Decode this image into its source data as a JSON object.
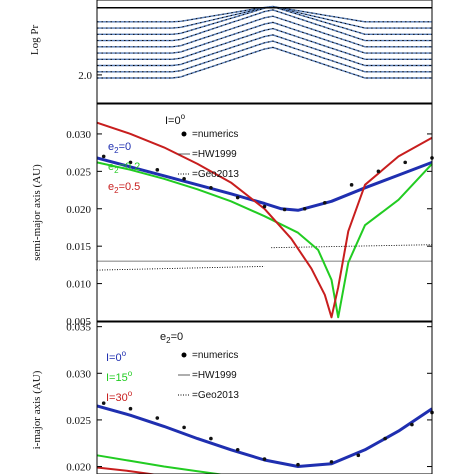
{
  "colors": {
    "numerics": "#111111",
    "e2_0": "#1f2fb0",
    "e2_02": "#22cc22",
    "e2_05": "#c81e1e",
    "I_0": "#1f2fb0",
    "I_15": "#22cc22",
    "I_30": "#c81e1e",
    "top_curves": "#5a7fb8"
  },
  "chart_data": [
    {
      "type": "line",
      "panel": "top",
      "ylabel": "Log Pr",
      "yticks": [
        "2.0"
      ],
      "ylim": [
        1.82,
        2.48
      ],
      "xlim": [
        0,
        1
      ],
      "peak_x": 0.52,
      "series": [
        {
          "left": 2.34,
          "right": 2.34,
          "peak": 2.44
        },
        {
          "left": 2.3,
          "right": 2.3,
          "peak": 2.44
        },
        {
          "left": 2.26,
          "right": 2.26,
          "peak": 2.44
        },
        {
          "left": 2.22,
          "right": 2.22,
          "peak": 2.42
        },
        {
          "left": 2.18,
          "right": 2.18,
          "peak": 2.38
        },
        {
          "left": 2.14,
          "right": 2.14,
          "peak": 2.34
        },
        {
          "left": 2.1,
          "right": 2.1,
          "peak": 2.3
        },
        {
          "left": 2.06,
          "right": 2.06,
          "peak": 2.26
        },
        {
          "left": 2.02,
          "right": 2.02,
          "peak": 2.22
        },
        {
          "left": 1.98,
          "right": 1.98,
          "peak": 2.18
        }
      ],
      "hline": 2.43
    },
    {
      "type": "line",
      "panel": "middle",
      "ylabel": "semi-major axis (AU)",
      "ylim": [
        0.005,
        0.034
      ],
      "yticks": [
        "0.005",
        "0.010",
        "0.015",
        "0.020",
        "0.025",
        "0.030"
      ],
      "ytick_values": [
        0.005,
        0.01,
        0.015,
        0.02,
        0.025,
        0.03
      ],
      "legend_title": "I=0",
      "legend_title_sup": "o",
      "legend_series": [
        {
          "label": "e",
          "sub": "2",
          "rest": "=0",
          "color_key": "e2_0"
        },
        {
          "label": "e",
          "sub": "2",
          "rest": "=0.2",
          "color_key": "e2_02"
        },
        {
          "label": "e",
          "sub": "2",
          "rest": "=0.5",
          "color_key": "e2_05"
        }
      ],
      "legend_methods": [
        "=numerics",
        "=HW1999",
        "=Geo2013"
      ],
      "series": [
        {
          "name": "e2=0",
          "color_key": "e2_0",
          "width": 3,
          "x": [
            0,
            0.1,
            0.2,
            0.3,
            0.4,
            0.5,
            0.55,
            0.6,
            0.7,
            0.8,
            0.9,
            1.0
          ],
          "y": [
            0.0268,
            0.0256,
            0.0244,
            0.0232,
            0.022,
            0.0207,
            0.02,
            0.0198,
            0.021,
            0.0228,
            0.0245,
            0.0262
          ]
        },
        {
          "name": "e2=0.2",
          "color_key": "e2_02",
          "width": 2,
          "x": [
            0,
            0.1,
            0.2,
            0.3,
            0.4,
            0.5,
            0.6,
            0.66,
            0.7,
            0.72,
            0.75,
            0.8,
            0.9,
            1.0
          ],
          "y": [
            0.0262,
            0.0252,
            0.024,
            0.0226,
            0.021,
            0.019,
            0.0168,
            0.0145,
            0.0105,
            0.0055,
            0.0128,
            0.0178,
            0.0212,
            0.026
          ]
        },
        {
          "name": "e2=0.5",
          "color_key": "e2_05",
          "width": 2,
          "x": [
            0,
            0.1,
            0.2,
            0.3,
            0.4,
            0.5,
            0.58,
            0.64,
            0.68,
            0.7,
            0.72,
            0.75,
            0.8,
            0.9,
            1.0
          ],
          "y": [
            0.0315,
            0.03,
            0.0282,
            0.026,
            0.0235,
            0.02,
            0.016,
            0.012,
            0.0085,
            0.0055,
            0.0095,
            0.017,
            0.0232,
            0.027,
            0.0295
          ]
        }
      ],
      "numerics": {
        "x": [
          0.02,
          0.1,
          0.18,
          0.26,
          0.34,
          0.42,
          0.5,
          0.56,
          0.62,
          0.68,
          0.76,
          0.84,
          0.92,
          1.0
        ],
        "y": [
          0.027,
          0.0262,
          0.0252,
          0.024,
          0.0228,
          0.0215,
          0.0203,
          0.0199,
          0.02,
          0.0208,
          0.0232,
          0.025,
          0.0262,
          0.0268
        ]
      },
      "hw1999": {
        "y": 0.013
      },
      "geo2013": [
        {
          "x": [
            0,
            0.5
          ],
          "y": [
            0.0118,
            0.0123
          ]
        },
        {
          "x": [
            0.52,
            1.0
          ],
          "y": [
            0.0148,
            0.0152
          ]
        }
      ]
    },
    {
      "type": "line",
      "panel": "bottom",
      "ylabel": "i-major axis (AU)",
      "ylim": [
        0.0192,
        0.0355
      ],
      "yticks": [
        "0.020",
        "0.025",
        "0.030",
        "0.035"
      ],
      "ytick_values": [
        0.02,
        0.025,
        0.03,
        0.035
      ],
      "legend_title": "e",
      "legend_title_sub": "2",
      "legend_title_rest": "=0",
      "legend_series": [
        {
          "label": "I=0",
          "sup": "o",
          "color_key": "I_0"
        },
        {
          "label": "I=15",
          "sup": "o",
          "color_key": "I_15"
        },
        {
          "label": "I=30",
          "sup": "o",
          "color_key": "I_30"
        }
      ],
      "legend_methods": [
        "=numerics",
        "=HW1999",
        "=Geo2013"
      ],
      "series": [
        {
          "name": "I=0",
          "color_key": "I_0",
          "width": 3,
          "x": [
            0,
            0.1,
            0.2,
            0.3,
            0.4,
            0.5,
            0.6,
            0.7,
            0.8,
            0.9,
            1.0
          ],
          "y": [
            0.0265,
            0.0255,
            0.0243,
            0.023,
            0.0218,
            0.0207,
            0.02,
            0.0203,
            0.0218,
            0.0238,
            0.0262
          ]
        },
        {
          "name": "I=15",
          "color_key": "I_15",
          "width": 2,
          "x": [
            0,
            0.1,
            0.2,
            0.3,
            0.4
          ],
          "y": [
            0.0212,
            0.0206,
            0.02,
            0.0195,
            0.019
          ]
        },
        {
          "name": "I=30",
          "color_key": "I_30",
          "width": 2,
          "x": [
            0,
            0.1,
            0.2
          ],
          "y": [
            0.0199,
            0.0195,
            0.019
          ]
        }
      ],
      "numerics": {
        "x": [
          0.02,
          0.1,
          0.18,
          0.26,
          0.34,
          0.42,
          0.5,
          0.6,
          0.7,
          0.78,
          0.86,
          0.94,
          1.0
        ],
        "y": [
          0.0268,
          0.0262,
          0.0252,
          0.0242,
          0.023,
          0.0218,
          0.0208,
          0.0202,
          0.0205,
          0.0212,
          0.023,
          0.0245,
          0.0258
        ]
      }
    }
  ]
}
